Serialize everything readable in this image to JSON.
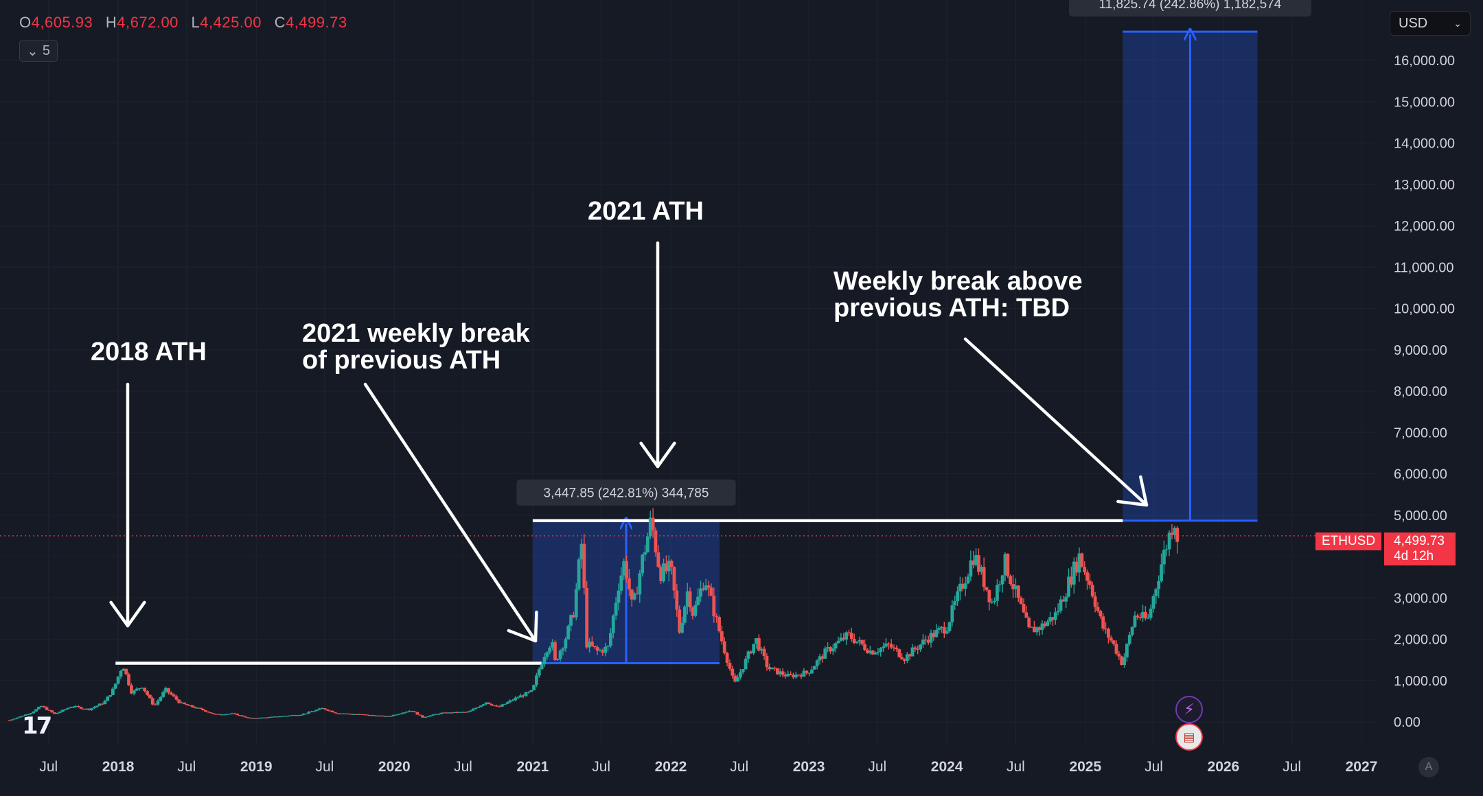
{
  "ohlc": {
    "o_label": "O",
    "o_value": "4,605.93",
    "h_label": "H",
    "h_value": "4,672.00",
    "l_label": "L",
    "l_value": "4,425.00",
    "c_label": "C",
    "c_value": "4,499.73"
  },
  "collapse_count": "5",
  "currency": "USD",
  "symbol_tag": "ETHUSD",
  "price_tag": {
    "price": "4,499.73",
    "countdown": "4d 12h"
  },
  "measure_boxes": [
    {
      "label": "3,447.85 (242.81%) 344,785",
      "x_start": "2021-01-01",
      "x_end": "2022-05-10",
      "y_from": 1420,
      "y_to": 4868
    },
    {
      "label": "11,825.74 (242.86%) 1,182,574",
      "x_start": "2025-04-10",
      "x_end": "2026-04-01",
      "y_from": 4868,
      "y_to": 16694
    }
  ],
  "annotations": [
    {
      "text": "2018 ATH"
    },
    {
      "lines": [
        "2021 weekly break",
        "of previous ATH"
      ]
    },
    {
      "text": "2021 ATH"
    },
    {
      "lines": [
        "Weekly break above",
        "previous ATH: TBD"
      ]
    }
  ],
  "chart_data": {
    "type": "candlestick",
    "symbol": "ETHUSD",
    "timeframe": "weekly",
    "y_axis_ticks": [
      "0.00",
      "1,000.00",
      "2,000.00",
      "3,000.00",
      "4,000.00",
      "5,000.00",
      "6,000.00",
      "7,000.00",
      "8,000.00",
      "9,000.00",
      "10,000.00",
      "11,000.00",
      "12,000.00",
      "13,000.00",
      "14,000.00",
      "15,000.00",
      "16,000.00"
    ],
    "x_axis_ticks": [
      {
        "label": "Jul",
        "date": "2017-07-01"
      },
      {
        "label": "2018",
        "date": "2018-01-01"
      },
      {
        "label": "Jul",
        "date": "2018-07-01"
      },
      {
        "label": "2019",
        "date": "2019-01-01"
      },
      {
        "label": "Jul",
        "date": "2019-07-01"
      },
      {
        "label": "2020",
        "date": "2020-01-01"
      },
      {
        "label": "Jul",
        "date": "2020-07-01"
      },
      {
        "label": "2021",
        "date": "2021-01-01"
      },
      {
        "label": "Jul",
        "date": "2021-07-01"
      },
      {
        "label": "2022",
        "date": "2022-01-01"
      },
      {
        "label": "Jul",
        "date": "2022-07-01"
      },
      {
        "label": "2023",
        "date": "2023-01-01"
      },
      {
        "label": "Jul",
        "date": "2023-07-01"
      },
      {
        "label": "2024",
        "date": "2024-01-01"
      },
      {
        "label": "Jul",
        "date": "2024-07-01"
      },
      {
        "label": "2025",
        "date": "2025-01-01"
      },
      {
        "label": "Jul",
        "date": "2025-07-01"
      },
      {
        "label": "2026",
        "date": "2026-01-01"
      },
      {
        "label": "Jul",
        "date": "2026-07-01"
      },
      {
        "label": "2027",
        "date": "2027-01-01"
      }
    ],
    "ylim": [
      0,
      16800
    ],
    "xlim": [
      "2017-03-20",
      "2027-02-10"
    ],
    "current_price": 4499.73,
    "horizontal_levels": [
      {
        "y": 1420,
        "x_start": "2017-12-25",
        "x_end": "2021-01-25",
        "color": "#ffffff"
      },
      {
        "y": 4868,
        "x_start": "2021-01-01",
        "x_end": "2025-04-10",
        "color": "#ffffff"
      }
    ],
    "price_path": [
      [
        "2017-03-20",
        40
      ],
      [
        "2017-05-15",
        220
      ],
      [
        "2017-06-12",
        380
      ],
      [
        "2017-07-17",
        190
      ],
      [
        "2017-09-01",
        380
      ],
      [
        "2017-10-15",
        300
      ],
      [
        "2017-11-25",
        470
      ],
      [
        "2017-12-20",
        800
      ],
      [
        "2018-01-13",
        1400
      ],
      [
        "2018-02-06",
        700
      ],
      [
        "2018-03-05",
        870
      ],
      [
        "2018-04-06",
        380
      ],
      [
        "2018-05-06",
        780
      ],
      [
        "2018-06-15",
        450
      ],
      [
        "2018-08-15",
        280
      ],
      [
        "2018-09-12",
        180
      ],
      [
        "2018-11-01",
        200
      ],
      [
        "2018-12-15",
        85
      ],
      [
        "2019-02-01",
        110
      ],
      [
        "2019-05-01",
        180
      ],
      [
        "2019-06-26",
        330
      ],
      [
        "2019-08-01",
        210
      ],
      [
        "2019-10-01",
        180
      ],
      [
        "2019-12-15",
        130
      ],
      [
        "2020-02-14",
        280
      ],
      [
        "2020-03-16",
        110
      ],
      [
        "2020-05-01",
        210
      ],
      [
        "2020-07-15",
        240
      ],
      [
        "2020-08-31",
        480
      ],
      [
        "2020-10-01",
        350
      ],
      [
        "2020-11-23",
        600
      ],
      [
        "2020-12-31",
        740
      ],
      [
        "2021-01-15",
        1200
      ],
      [
        "2021-02-05",
        1750
      ],
      [
        "2021-02-20",
        1950
      ],
      [
        "2021-03-01",
        1450
      ],
      [
        "2021-04-01",
        2100
      ],
      [
        "2021-04-20",
        2700
      ],
      [
        "2021-05-11",
        4380
      ],
      [
        "2021-05-23",
        1900
      ],
      [
        "2021-06-22",
        1700
      ],
      [
        "2021-07-20",
        1800
      ],
      [
        "2021-08-15",
        3300
      ],
      [
        "2021-09-01",
        3900
      ],
      [
        "2021-09-22",
        2700
      ],
      [
        "2021-10-15",
        3800
      ],
      [
        "2021-11-10",
        4868
      ],
      [
        "2021-12-04",
        3600
      ],
      [
        "2022-01-01",
        3700
      ],
      [
        "2022-01-24",
        2200
      ],
      [
        "2022-02-15",
        3200
      ],
      [
        "2022-03-01",
        2600
      ],
      [
        "2022-04-01",
        3500
      ],
      [
        "2022-05-15",
        2000
      ],
      [
        "2022-06-18",
        900
      ],
      [
        "2022-08-14",
        2000
      ],
      [
        "2022-09-15",
        1300
      ],
      [
        "2022-11-09",
        1100
      ],
      [
        "2022-12-30",
        1200
      ],
      [
        "2023-02-15",
        1700
      ],
      [
        "2023-04-15",
        2100
      ],
      [
        "2023-06-15",
        1700
      ],
      [
        "2023-08-01",
        1850
      ],
      [
        "2023-09-11",
        1550
      ],
      [
        "2023-11-15",
        2050
      ],
      [
        "2023-12-31",
        2300
      ],
      [
        "2024-03-12",
        4050
      ],
      [
        "2024-05-01",
        2850
      ],
      [
        "2024-06-01",
        3900
      ],
      [
        "2024-08-05",
        2200
      ],
      [
        "2024-09-06",
        2300
      ],
      [
        "2024-10-15",
        2600
      ],
      [
        "2024-12-16",
        4000
      ],
      [
        "2025-01-15",
        3300
      ],
      [
        "2025-02-15",
        2300
      ],
      [
        "2025-03-15",
        1900
      ],
      [
        "2025-04-09",
        1400
      ],
      [
        "2025-05-13",
        2600
      ],
      [
        "2025-06-15",
        2450
      ],
      [
        "2025-07-20",
        3800
      ],
      [
        "2025-08-24",
        4950
      ],
      [
        "2025-09-01",
        4499.73
      ]
    ]
  }
}
